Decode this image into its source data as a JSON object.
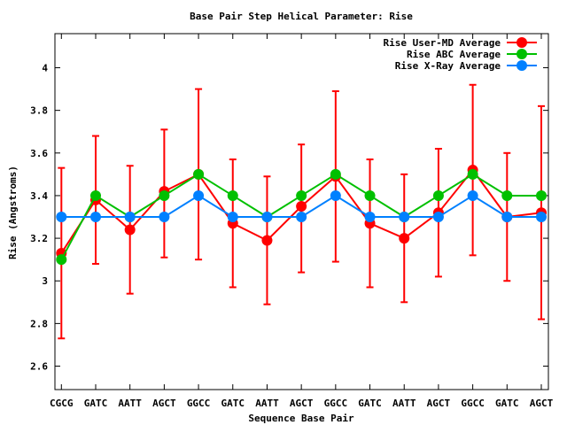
{
  "chart_data": {
    "type": "line",
    "title": "Base Pair Step Helical Parameter: Rise",
    "xlabel": "Sequence Base Pair",
    "ylabel": "Rise (Angstroms)",
    "categories": [
      "CGCG",
      "GATC",
      "AATT",
      "AGCT",
      "GGCC",
      "GATC",
      "AATT",
      "AGCT",
      "GGCC",
      "GATC",
      "AATT",
      "AGCT",
      "GGCC",
      "GATC",
      "AGCT"
    ],
    "ylim": [
      2.49,
      4.16
    ],
    "yticks": [
      2.6,
      2.8,
      3,
      3.2,
      3.4,
      3.6,
      3.8,
      4
    ],
    "ytick_labels": [
      "2.6",
      "2.8",
      "3",
      "3.2",
      "3.4",
      "3.6",
      "3.8",
      "4"
    ],
    "grid": false,
    "legend_position": "top-right",
    "series": [
      {
        "name": "Rise User-MD Average",
        "color": "#ff0000",
        "values": [
          3.13,
          3.38,
          3.24,
          3.42,
          3.5,
          3.27,
          3.19,
          3.35,
          3.49,
          3.27,
          3.2,
          3.32,
          3.52,
          3.3,
          3.32
        ],
        "error_low": [
          2.73,
          3.08,
          2.94,
          3.11,
          3.1,
          2.97,
          2.89,
          3.04,
          3.09,
          2.97,
          2.9,
          3.02,
          3.12,
          3.0,
          2.82
        ],
        "error_high": [
          3.53,
          3.68,
          3.54,
          3.71,
          3.9,
          3.57,
          3.49,
          3.64,
          3.89,
          3.57,
          3.5,
          3.62,
          3.92,
          3.6,
          3.82
        ]
      },
      {
        "name": "Rise ABC Average",
        "color": "#00c000",
        "values": [
          3.1,
          3.4,
          3.3,
          3.4,
          3.5,
          3.4,
          3.3,
          3.4,
          3.5,
          3.4,
          3.3,
          3.4,
          3.5,
          3.4,
          3.4
        ]
      },
      {
        "name": "Rise X-Ray Average",
        "color": "#0080ff",
        "values": [
          3.3,
          3.3,
          3.3,
          3.3,
          3.4,
          3.3,
          3.3,
          3.3,
          3.4,
          3.3,
          3.3,
          3.3,
          3.4,
          3.3,
          3.3
        ]
      }
    ]
  }
}
